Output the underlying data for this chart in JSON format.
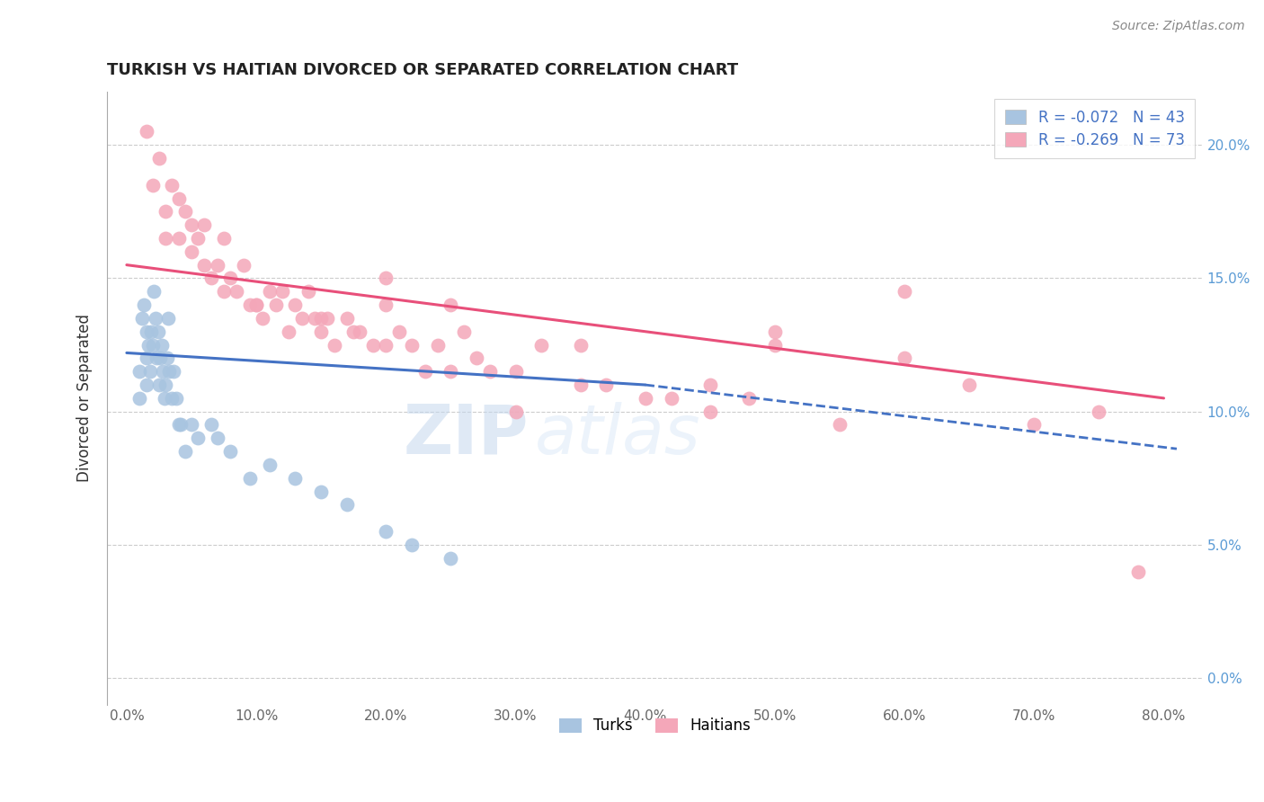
{
  "title": "TURKISH VS HAITIAN DIVORCED OR SEPARATED CORRELATION CHART",
  "source_text": "Source: ZipAtlas.com",
  "ylabel": "Divorced or Separated",
  "xlabel_values": [
    0.0,
    10.0,
    20.0,
    30.0,
    40.0,
    50.0,
    60.0,
    70.0,
    80.0
  ],
  "ylabel_values": [
    0.0,
    5.0,
    10.0,
    15.0,
    20.0
  ],
  "xlim": [
    -1.5,
    83.0
  ],
  "ylim": [
    -1.0,
    22.0
  ],
  "turks_color": "#a8c4e0",
  "haitians_color": "#f4a7b9",
  "turks_line_color": "#4472c4",
  "haitians_line_color": "#e84f7a",
  "legend_turks_label": "R = -0.072   N = 43",
  "legend_haitians_label": "R = -0.269   N = 73",
  "watermark_text": "ZIPatlas",
  "turks_line_start_x": 0.0,
  "turks_line_start_y": 12.2,
  "turks_line_end_x": 40.0,
  "turks_line_end_y": 11.0,
  "turks_dash_end_x": 81.0,
  "turks_dash_end_y": 8.6,
  "haitians_line_start_x": 0.0,
  "haitians_line_start_y": 15.5,
  "haitians_line_end_x": 80.0,
  "haitians_line_end_y": 10.5,
  "turks_x": [
    1.0,
    1.2,
    1.3,
    1.5,
    1.5,
    1.7,
    1.8,
    1.9,
    2.0,
    2.1,
    2.2,
    2.3,
    2.4,
    2.5,
    2.6,
    2.7,
    2.8,
    2.9,
    3.0,
    3.1,
    3.2,
    3.3,
    3.5,
    3.6,
    3.8,
    4.0,
    4.2,
    4.5,
    5.0,
    5.5,
    6.5,
    7.0,
    8.0,
    9.5,
    11.0,
    13.0,
    15.0,
    17.0,
    20.0,
    22.0,
    25.0,
    1.0,
    1.5
  ],
  "turks_y": [
    11.5,
    13.5,
    14.0,
    13.0,
    12.0,
    12.5,
    11.5,
    13.0,
    12.5,
    14.5,
    13.5,
    12.0,
    13.0,
    11.0,
    12.0,
    12.5,
    11.5,
    10.5,
    11.0,
    12.0,
    13.5,
    11.5,
    10.5,
    11.5,
    10.5,
    9.5,
    9.5,
    8.5,
    9.5,
    9.0,
    9.5,
    9.0,
    8.5,
    7.5,
    8.0,
    7.5,
    7.0,
    6.5,
    5.5,
    5.0,
    4.5,
    10.5,
    11.0
  ],
  "haitians_x": [
    1.5,
    2.0,
    2.5,
    3.0,
    3.0,
    3.5,
    4.0,
    4.0,
    4.5,
    5.0,
    5.0,
    5.5,
    6.0,
    6.0,
    6.5,
    7.0,
    7.5,
    7.5,
    8.0,
    8.5,
    9.0,
    9.5,
    10.0,
    10.5,
    11.0,
    11.5,
    12.0,
    12.5,
    13.0,
    13.5,
    14.0,
    14.5,
    15.0,
    15.5,
    16.0,
    17.0,
    17.5,
    18.0,
    19.0,
    20.0,
    20.0,
    21.0,
    22.0,
    23.0,
    24.0,
    25.0,
    26.0,
    27.0,
    28.0,
    30.0,
    32.0,
    35.0,
    37.0,
    40.0,
    42.0,
    45.0,
    48.0,
    50.0,
    55.0,
    60.0,
    65.0,
    70.0,
    75.0,
    78.0,
    20.0,
    30.0,
    45.0,
    50.0,
    10.0,
    35.0,
    60.0,
    15.0,
    25.0
  ],
  "haitians_y": [
    20.5,
    18.5,
    19.5,
    17.5,
    16.5,
    18.5,
    16.5,
    18.0,
    17.5,
    16.0,
    17.0,
    16.5,
    15.5,
    17.0,
    15.0,
    15.5,
    16.5,
    14.5,
    15.0,
    14.5,
    15.5,
    14.0,
    14.0,
    13.5,
    14.5,
    14.0,
    14.5,
    13.0,
    14.0,
    13.5,
    14.5,
    13.5,
    13.0,
    13.5,
    12.5,
    13.5,
    13.0,
    13.0,
    12.5,
    12.5,
    14.0,
    13.0,
    12.5,
    11.5,
    12.5,
    11.5,
    13.0,
    12.0,
    11.5,
    11.5,
    12.5,
    11.0,
    11.0,
    10.5,
    10.5,
    11.0,
    10.5,
    13.0,
    9.5,
    12.0,
    11.0,
    9.5,
    10.0,
    4.0,
    15.0,
    10.0,
    10.0,
    12.5,
    14.0,
    12.5,
    14.5,
    13.5,
    14.0
  ]
}
